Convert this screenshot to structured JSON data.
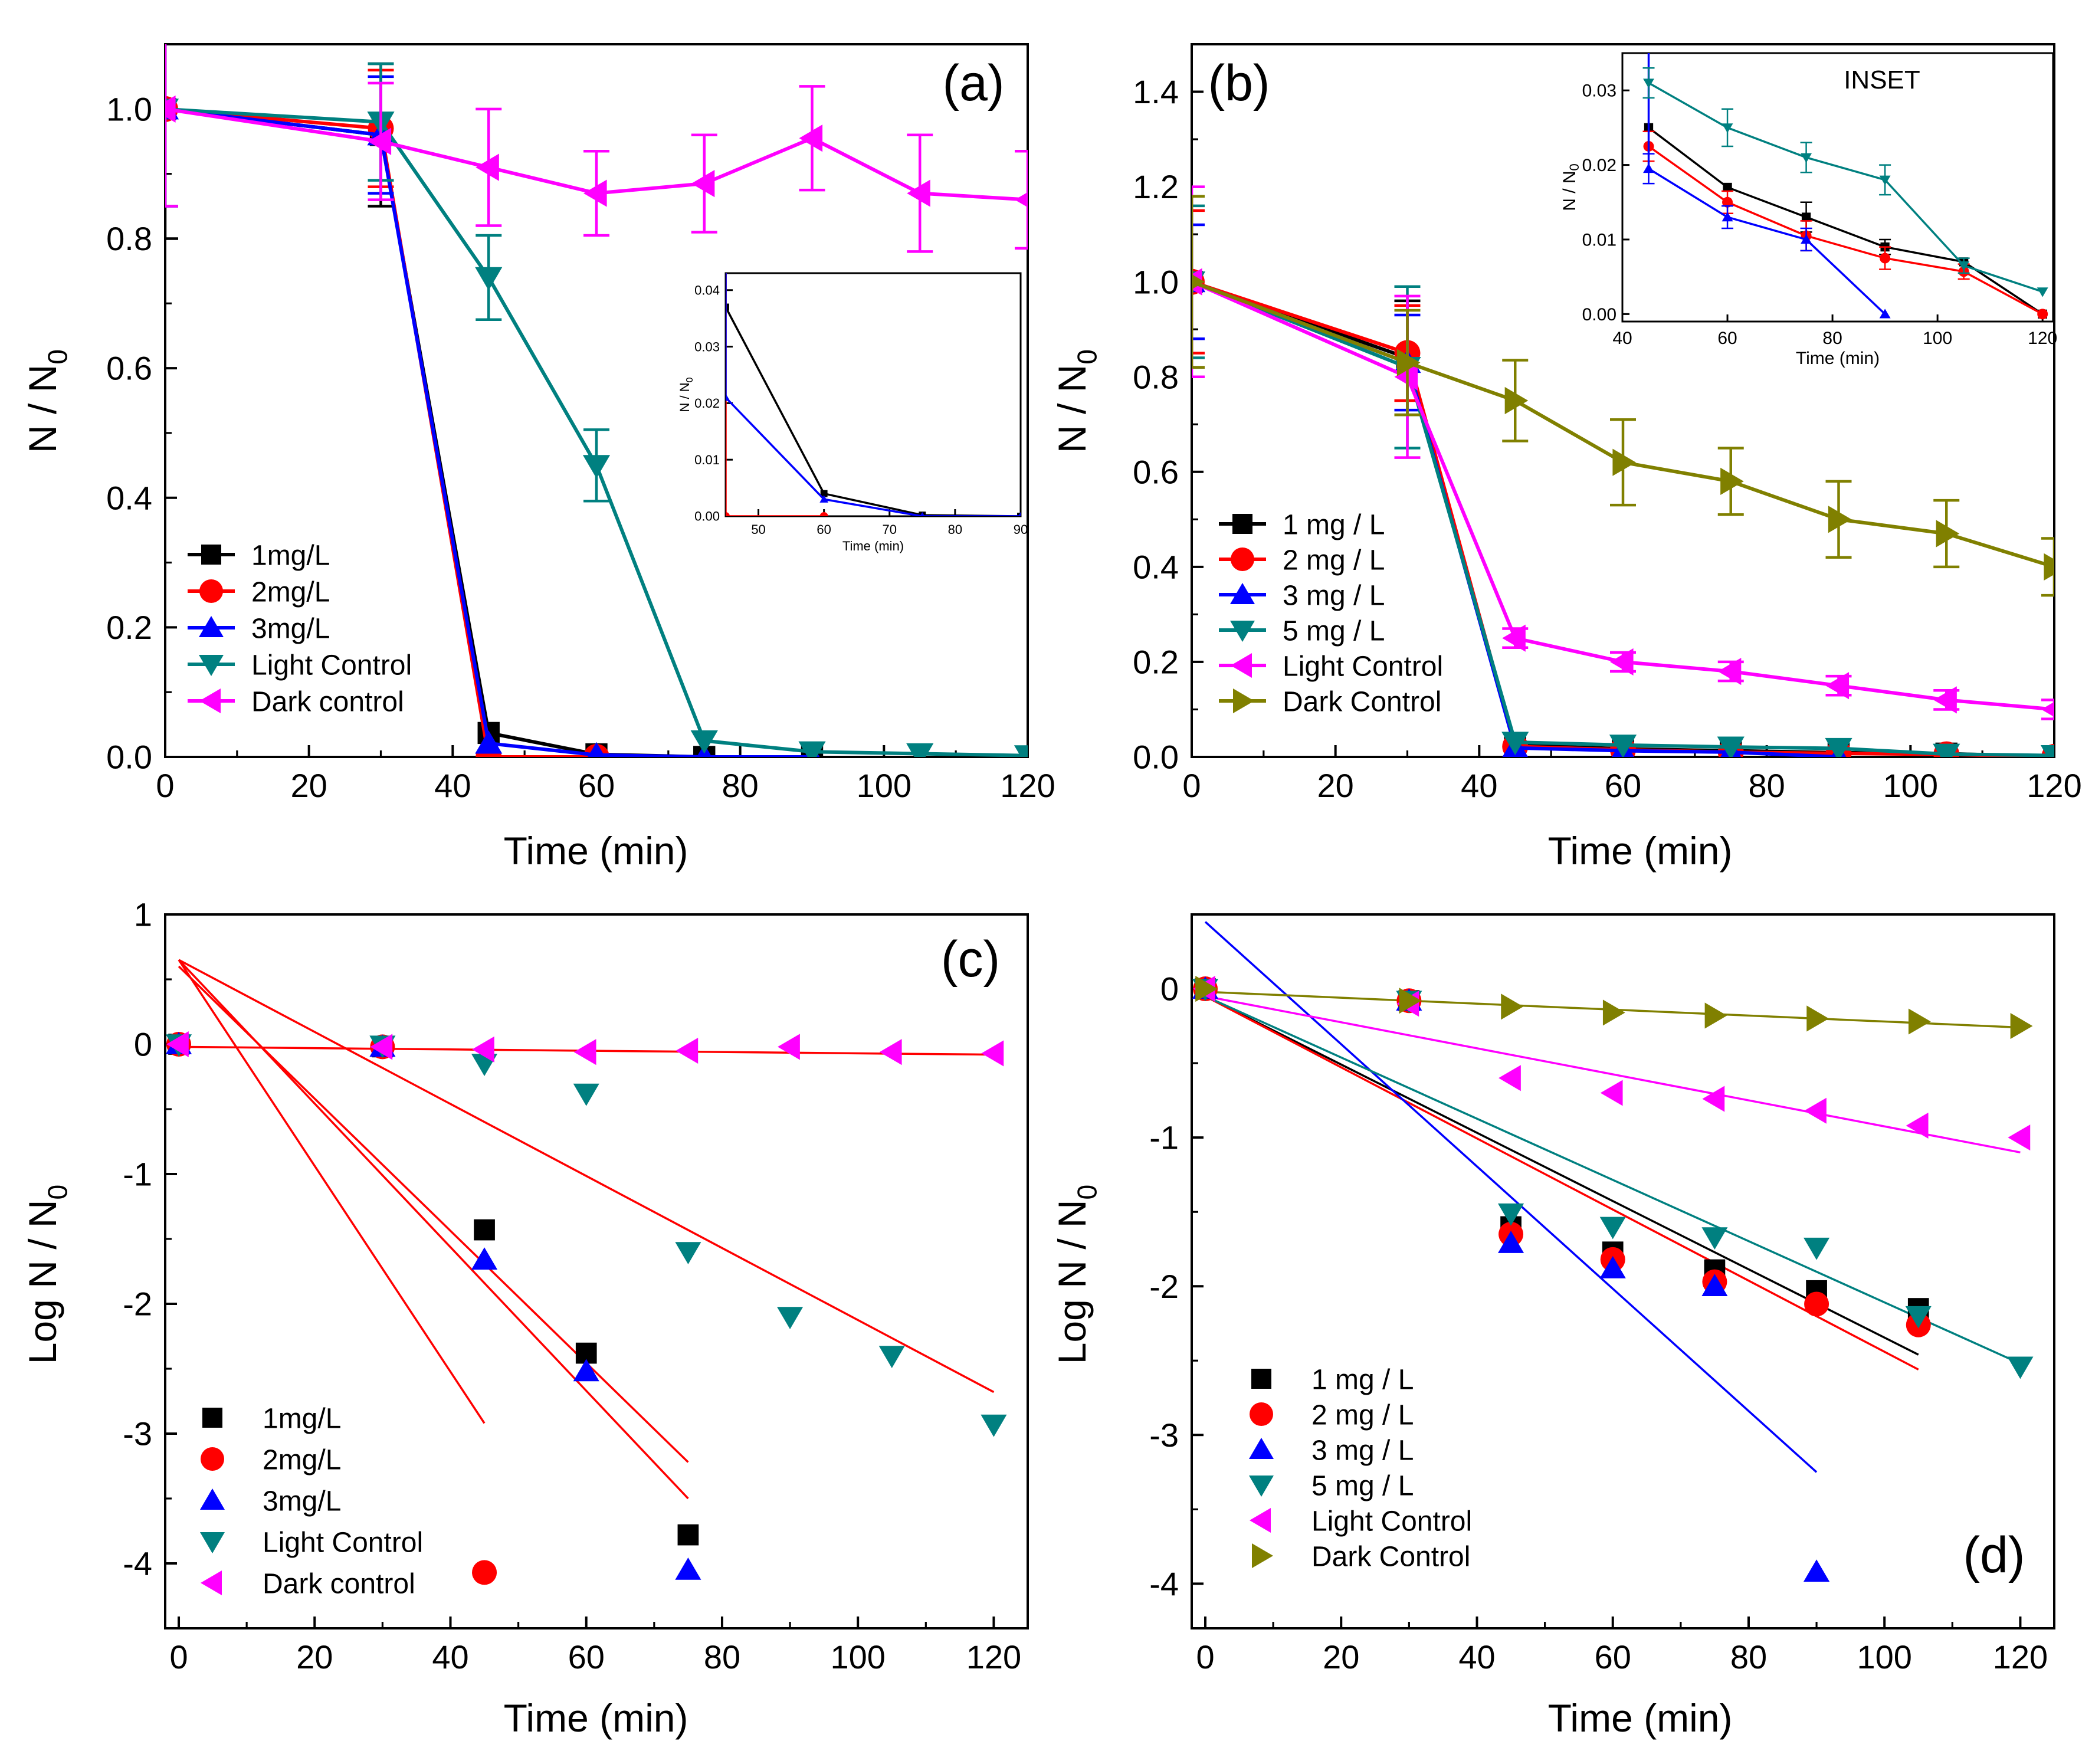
{
  "chart_data": [
    {
      "panel": "(a)",
      "type": "line",
      "xlabel": "Time (min)",
      "ylabel_main": "N / N",
      "ylabel_sub": "0",
      "xlim": [
        0,
        120
      ],
      "ylim": [
        0,
        1.1
      ],
      "xticks": [
        0,
        20,
        40,
        60,
        80,
        100,
        120
      ],
      "yticks": [
        0.0,
        0.2,
        0.4,
        0.6,
        0.8,
        1.0
      ],
      "legend": "bottom-left",
      "series": [
        {
          "name": "1mg/L",
          "color": "#000000",
          "marker": "square",
          "x": [
            0,
            30,
            45,
            60,
            75,
            90
          ],
          "y": [
            1.0,
            0.96,
            0.037,
            0.004,
            0.0,
            0.0
          ],
          "err": [
            0.2,
            0.11,
            0,
            0,
            0,
            0
          ]
        },
        {
          "name": "2mg/L",
          "color": "#ff0000",
          "marker": "circle",
          "x": [
            0,
            30,
            45,
            60
          ],
          "y": [
            1.0,
            0.97,
            0.0,
            0.0
          ],
          "err": [
            0,
            0.09,
            0,
            0
          ]
        },
        {
          "name": "3mg/L",
          "color": "#0000ff",
          "marker": "triangle-up",
          "x": [
            0,
            30,
            45,
            60,
            75,
            90
          ],
          "y": [
            1.0,
            0.96,
            0.021,
            0.003,
            0.0,
            0.0
          ],
          "err": [
            0.15,
            0.09,
            0,
            0,
            0,
            0
          ]
        },
        {
          "name": "Light Control",
          "color": "#008080",
          "marker": "triangle-down",
          "x": [
            0,
            30,
            45,
            60,
            75,
            90,
            105,
            120
          ],
          "y": [
            1.0,
            0.98,
            0.74,
            0.45,
            0.025,
            0.008,
            0.005,
            0.002
          ],
          "err": [
            0.15,
            0.09,
            0.065,
            0.055,
            0,
            0,
            0,
            0
          ]
        },
        {
          "name": "Dark control",
          "color": "#ff00ff",
          "marker": "triangle-left",
          "x": [
            0,
            30,
            45,
            60,
            75,
            90,
            105,
            120
          ],
          "y": [
            1.0,
            0.95,
            0.91,
            0.87,
            0.885,
            0.955,
            0.87,
            0.86
          ],
          "err": [
            0.15,
            0.09,
            0.09,
            0.065,
            0.075,
            0.08,
            0.09,
            0.075
          ]
        }
      ],
      "inset": {
        "xlabel": "Time (min)",
        "ylabel": "N / N",
        "ylabel_sub": "0",
        "xlim": [
          45,
          90
        ],
        "ylim": [
          0,
          0.043
        ],
        "xticks": [
          50,
          60,
          70,
          80,
          90
        ],
        "yticks": [
          0.0,
          0.01,
          0.02,
          0.03,
          0.04
        ],
        "ytick_labels": [
          "0.00",
          "0.01",
          "0.02",
          "0.03",
          "0.04"
        ],
        "series": [
          {
            "name": "1mg/L",
            "color": "#000000",
            "marker": "square",
            "x": [
              45,
              60,
              75,
              90
            ],
            "y": [
              0.037,
              0.004,
              0.0002,
              0.0
            ],
            "lead_in": true
          },
          {
            "name": "2mg/L",
            "color": "#ff0000",
            "marker": "circle",
            "x": [
              45,
              60
            ],
            "y": [
              0.0,
              0.0
            ],
            "lead_in": true
          },
          {
            "name": "3mg/L",
            "color": "#0000ff",
            "marker": "triangle-up",
            "x": [
              45,
              60,
              75,
              90
            ],
            "y": [
              0.021,
              0.003,
              0.0,
              0.0
            ],
            "lead_in": true
          }
        ]
      }
    },
    {
      "panel": "(b)",
      "type": "line",
      "xlabel": "Time (min)",
      "ylabel_main": "N / N",
      "ylabel_sub": "0",
      "xlim": [
        0,
        120
      ],
      "ylim": [
        0,
        1.5
      ],
      "xticks": [
        0,
        20,
        40,
        60,
        80,
        100,
        120
      ],
      "yticks": [
        0.0,
        0.2,
        0.4,
        0.6,
        0.8,
        1.0,
        1.2,
        1.4
      ],
      "legend": "bottom-left",
      "series": [
        {
          "name": "1 mg / L",
          "color": "#000000",
          "marker": "square",
          "x": [
            0,
            30,
            45,
            60,
            75,
            90,
            105,
            120
          ],
          "y": [
            1.0,
            0.84,
            0.025,
            0.017,
            0.013,
            0.009,
            0.007,
            0.0
          ],
          "err": [
            0.18,
            0.12,
            0,
            0,
            0,
            0,
            0,
            0
          ]
        },
        {
          "name": "2 mg / L",
          "color": "#ff0000",
          "marker": "circle",
          "x": [
            0,
            30,
            45,
            60,
            75,
            90,
            105,
            120
          ],
          "y": [
            1.0,
            0.85,
            0.022,
            0.015,
            0.01,
            0.0075,
            0.0055,
            0.0
          ],
          "err": [
            0.15,
            0.1,
            0,
            0,
            0,
            0,
            0,
            0
          ]
        },
        {
          "name": "3 mg / L",
          "color": "#0000ff",
          "marker": "triangle-up",
          "x": [
            0,
            30,
            45,
            60,
            75,
            90
          ],
          "y": [
            1.0,
            0.83,
            0.019,
            0.013,
            0.01,
            0.0
          ],
          "err": [
            0.12,
            0.1,
            0,
            0,
            0,
            0
          ]
        },
        {
          "name": "5 mg / L",
          "color": "#008080",
          "marker": "triangle-down",
          "x": [
            0,
            30,
            45,
            60,
            75,
            90,
            105,
            120
          ],
          "y": [
            1.0,
            0.82,
            0.031,
            0.025,
            0.021,
            0.018,
            0.006,
            0.003
          ],
          "err": [
            0.16,
            0.17,
            0,
            0,
            0,
            0,
            0,
            0
          ]
        },
        {
          "name": "Light Control",
          "color": "#ff00ff",
          "marker": "triangle-left",
          "x": [
            0,
            30,
            45,
            60,
            75,
            90,
            105,
            120
          ],
          "y": [
            1.0,
            0.8,
            0.25,
            0.2,
            0.18,
            0.15,
            0.12,
            0.1
          ],
          "err": [
            0.2,
            0.17,
            0.02,
            0.02,
            0.02,
            0.02,
            0.02,
            0.02
          ]
        },
        {
          "name": "Dark Control",
          "color": "#808000",
          "marker": "triangle-right",
          "x": [
            0,
            30,
            45,
            60,
            75,
            90,
            105,
            120
          ],
          "y": [
            1.0,
            0.83,
            0.75,
            0.62,
            0.58,
            0.5,
            0.47,
            0.4
          ],
          "err": [
            0.18,
            0.11,
            0.085,
            0.09,
            0.07,
            0.08,
            0.07,
            0.06
          ]
        }
      ],
      "inset": {
        "title": "INSET",
        "xlabel": "Time (min)",
        "ylabel": "N / N",
        "ylabel_sub": "0",
        "xlim": [
          40,
          122
        ],
        "ylim": [
          -0.001,
          0.035
        ],
        "xticks": [
          40,
          60,
          80,
          100,
          120
        ],
        "yticks": [
          0.0,
          0.01,
          0.02,
          0.03
        ],
        "ytick_labels": [
          "0.00",
          "0.01",
          "0.02",
          "0.03"
        ],
        "series": [
          {
            "name": "1 mg / L",
            "color": "#000000",
            "marker": "square",
            "x": [
              45,
              60,
              75,
              90,
              105,
              120
            ],
            "y": [
              0.025,
              0.017,
              0.013,
              0.009,
              0.007,
              0.0
            ],
            "err": [
              0,
              0,
              0.002,
              0.001,
              0,
              0
            ]
          },
          {
            "name": "2 mg / L",
            "color": "#ff0000",
            "marker": "circle",
            "x": [
              45,
              60,
              75,
              90,
              105,
              120
            ],
            "y": [
              0.0225,
              0.015,
              0.0105,
              0.0075,
              0.0057,
              0.0
            ],
            "err": [
              0.002,
              0.0015,
              0.002,
              0.0015,
              0.001,
              0
            ]
          },
          {
            "name": "3 mg / L",
            "color": "#0000ff",
            "marker": "triangle-up",
            "x": [
              45,
              60,
              75,
              90
            ],
            "y": [
              0.0195,
              0.013,
              0.01,
              0.0
            ],
            "err": [
              0.002,
              0.0015,
              0.0015,
              0
            ],
            "lead_in": true
          },
          {
            "name": "5 mg / L",
            "color": "#008080",
            "marker": "triangle-down",
            "x": [
              45,
              60,
              75,
              90,
              105,
              120
            ],
            "y": [
              0.031,
              0.025,
              0.021,
              0.018,
              0.0065,
              0.003
            ],
            "err": [
              0.002,
              0.0025,
              0.002,
              0.002,
              0.001,
              0
            ]
          }
        ]
      }
    },
    {
      "panel": "(c)",
      "type": "scatter",
      "xlabel": "Time (min)",
      "ylabel_main": "Log N / N",
      "ylabel_sub": "0",
      "xlim": [
        -2,
        125
      ],
      "ylim": [
        -4.5,
        1
      ],
      "xticks": [
        0,
        20,
        40,
        60,
        80,
        100,
        120
      ],
      "yticks": [
        1,
        0,
        -1,
        -2,
        -3,
        -4
      ],
      "legend": "bottom-left",
      "series": [
        {
          "name": "1mg/L",
          "color": "#000000",
          "marker": "square",
          "x": [
            0,
            30,
            45,
            60,
            75
          ],
          "y": [
            0,
            -0.02,
            -1.43,
            -2.38,
            -3.78
          ]
        },
        {
          "name": "2mg/L",
          "color": "#ff0000",
          "marker": "circle",
          "x": [
            0,
            30,
            45
          ],
          "y": [
            0,
            -0.02,
            -4.07
          ]
        },
        {
          "name": "3mg/L",
          "color": "#0000ff",
          "marker": "triangle-up",
          "x": [
            0,
            30,
            45,
            60,
            75
          ],
          "y": [
            0,
            -0.02,
            -1.66,
            -2.52,
            -4.05
          ]
        },
        {
          "name": "Light Control",
          "color": "#008080",
          "marker": "triangle-down",
          "x": [
            0,
            30,
            45,
            60,
            75,
            90,
            105,
            120
          ],
          "y": [
            0,
            -0.01,
            -0.15,
            -0.38,
            -1.6,
            -2.1,
            -2.4,
            -2.93
          ]
        },
        {
          "name": "Dark control",
          "color": "#ff00ff",
          "marker": "triangle-left",
          "x": [
            0,
            30,
            45,
            60,
            75,
            90,
            105,
            120
          ],
          "y": [
            0,
            -0.02,
            -0.04,
            -0.06,
            -0.05,
            -0.02,
            -0.06,
            -0.07
          ]
        }
      ],
      "fits": [
        {
          "color": "#ff0000",
          "x": [
            0,
            45
          ],
          "y": [
            0.65,
            -2.92
          ]
        },
        {
          "color": "#ff0000",
          "x": [
            0,
            75
          ],
          "y": [
            0.6,
            -3.22
          ]
        },
        {
          "color": "#ff0000",
          "x": [
            0,
            75
          ],
          "y": [
            0.65,
            -3.5
          ]
        },
        {
          "color": "#ff0000",
          "x": [
            0,
            120
          ],
          "y": [
            0.65,
            -2.68
          ]
        },
        {
          "color": "#ff0000",
          "x": [
            0,
            120
          ],
          "y": [
            -0.02,
            -0.08
          ]
        }
      ]
    },
    {
      "panel": "(d)",
      "type": "scatter",
      "xlabel": "Time (min)",
      "ylabel_main": "Log N / N",
      "ylabel_sub": "0",
      "xlim": [
        -2,
        125
      ],
      "ylim": [
        -4.3,
        0.5
      ],
      "xticks": [
        0,
        20,
        40,
        60,
        80,
        100,
        120
      ],
      "yticks": [
        0,
        -1,
        -2,
        -3,
        -4
      ],
      "legend": "bottom-left",
      "series": [
        {
          "name": "1 mg / L",
          "color": "#000000",
          "marker": "square",
          "x": [
            0,
            30,
            45,
            60,
            75,
            90,
            105
          ],
          "y": [
            0,
            -0.08,
            -1.6,
            -1.77,
            -1.89,
            -2.03,
            -2.15
          ]
        },
        {
          "name": "2 mg / L",
          "color": "#ff0000",
          "marker": "circle",
          "x": [
            0,
            30,
            45,
            60,
            75,
            90,
            105
          ],
          "y": [
            0,
            -0.08,
            -1.65,
            -1.82,
            -1.97,
            -2.12,
            -2.26
          ]
        },
        {
          "name": "3 mg / L",
          "color": "#0000ff",
          "marker": "triangle-up",
          "x": [
            0,
            30,
            45,
            60,
            75,
            90
          ],
          "y": [
            0,
            -0.08,
            -1.71,
            -1.88,
            -2.0,
            -3.92
          ]
        },
        {
          "name": "5 mg / L",
          "color": "#008080",
          "marker": "triangle-down",
          "x": [
            0,
            30,
            45,
            60,
            75,
            90,
            105,
            120
          ],
          "y": [
            0,
            -0.08,
            -1.51,
            -1.6,
            -1.67,
            -1.74,
            -2.2,
            -2.54
          ]
        },
        {
          "name": "Light Control",
          "color": "#ff00ff",
          "marker": "triangle-left",
          "x": [
            0,
            30,
            45,
            60,
            75,
            90,
            105,
            120
          ],
          "y": [
            0,
            -0.1,
            -0.6,
            -0.7,
            -0.74,
            -0.82,
            -0.92,
            -1.0
          ]
        },
        {
          "name": "Dark Control",
          "color": "#808000",
          "marker": "triangle-right",
          "x": [
            0,
            30,
            45,
            60,
            75,
            90,
            105,
            120
          ],
          "y": [
            0,
            -0.08,
            -0.12,
            -0.16,
            -0.18,
            -0.2,
            -0.22,
            -0.25
          ]
        }
      ],
      "fits": [
        {
          "color": "#000000",
          "x": [
            0,
            105
          ],
          "y": [
            -0.05,
            -2.46
          ]
        },
        {
          "color": "#ff0000",
          "x": [
            0,
            105
          ],
          "y": [
            -0.05,
            -2.56
          ]
        },
        {
          "color": "#0000ff",
          "x": [
            0,
            90
          ],
          "y": [
            0.45,
            -3.25
          ]
        },
        {
          "color": "#008080",
          "x": [
            0,
            120
          ],
          "y": [
            -0.05,
            -2.52
          ]
        },
        {
          "color": "#ff00ff",
          "x": [
            0,
            120
          ],
          "y": [
            -0.05,
            -1.1
          ]
        },
        {
          "color": "#808000",
          "x": [
            0,
            120
          ],
          "y": [
            -0.02,
            -0.26
          ]
        }
      ]
    }
  ]
}
